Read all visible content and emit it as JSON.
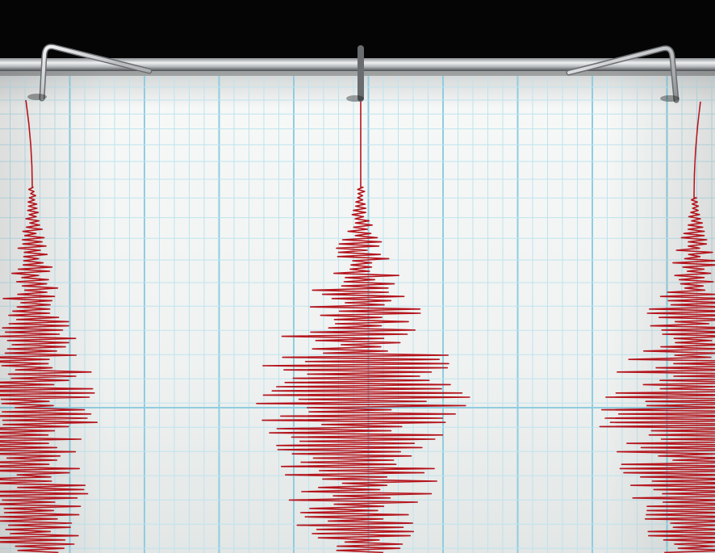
{
  "scene": {
    "subject": "seismograph",
    "colors": {
      "background": "#050505",
      "paper": "#f1f3f2",
      "grid_minor": "#bfe3ee",
      "grid_major": "#8fcde0",
      "trace": "#b4141c",
      "rail": "#c9cbcd",
      "stylus": "#d5d7d9"
    },
    "pens": [
      {
        "name": "left-stylus",
        "amplitude_level": 0.8
      },
      {
        "name": "center-stylus",
        "amplitude_level": 1.0
      },
      {
        "name": "right-stylus",
        "amplitude_level": 0.9
      }
    ]
  }
}
